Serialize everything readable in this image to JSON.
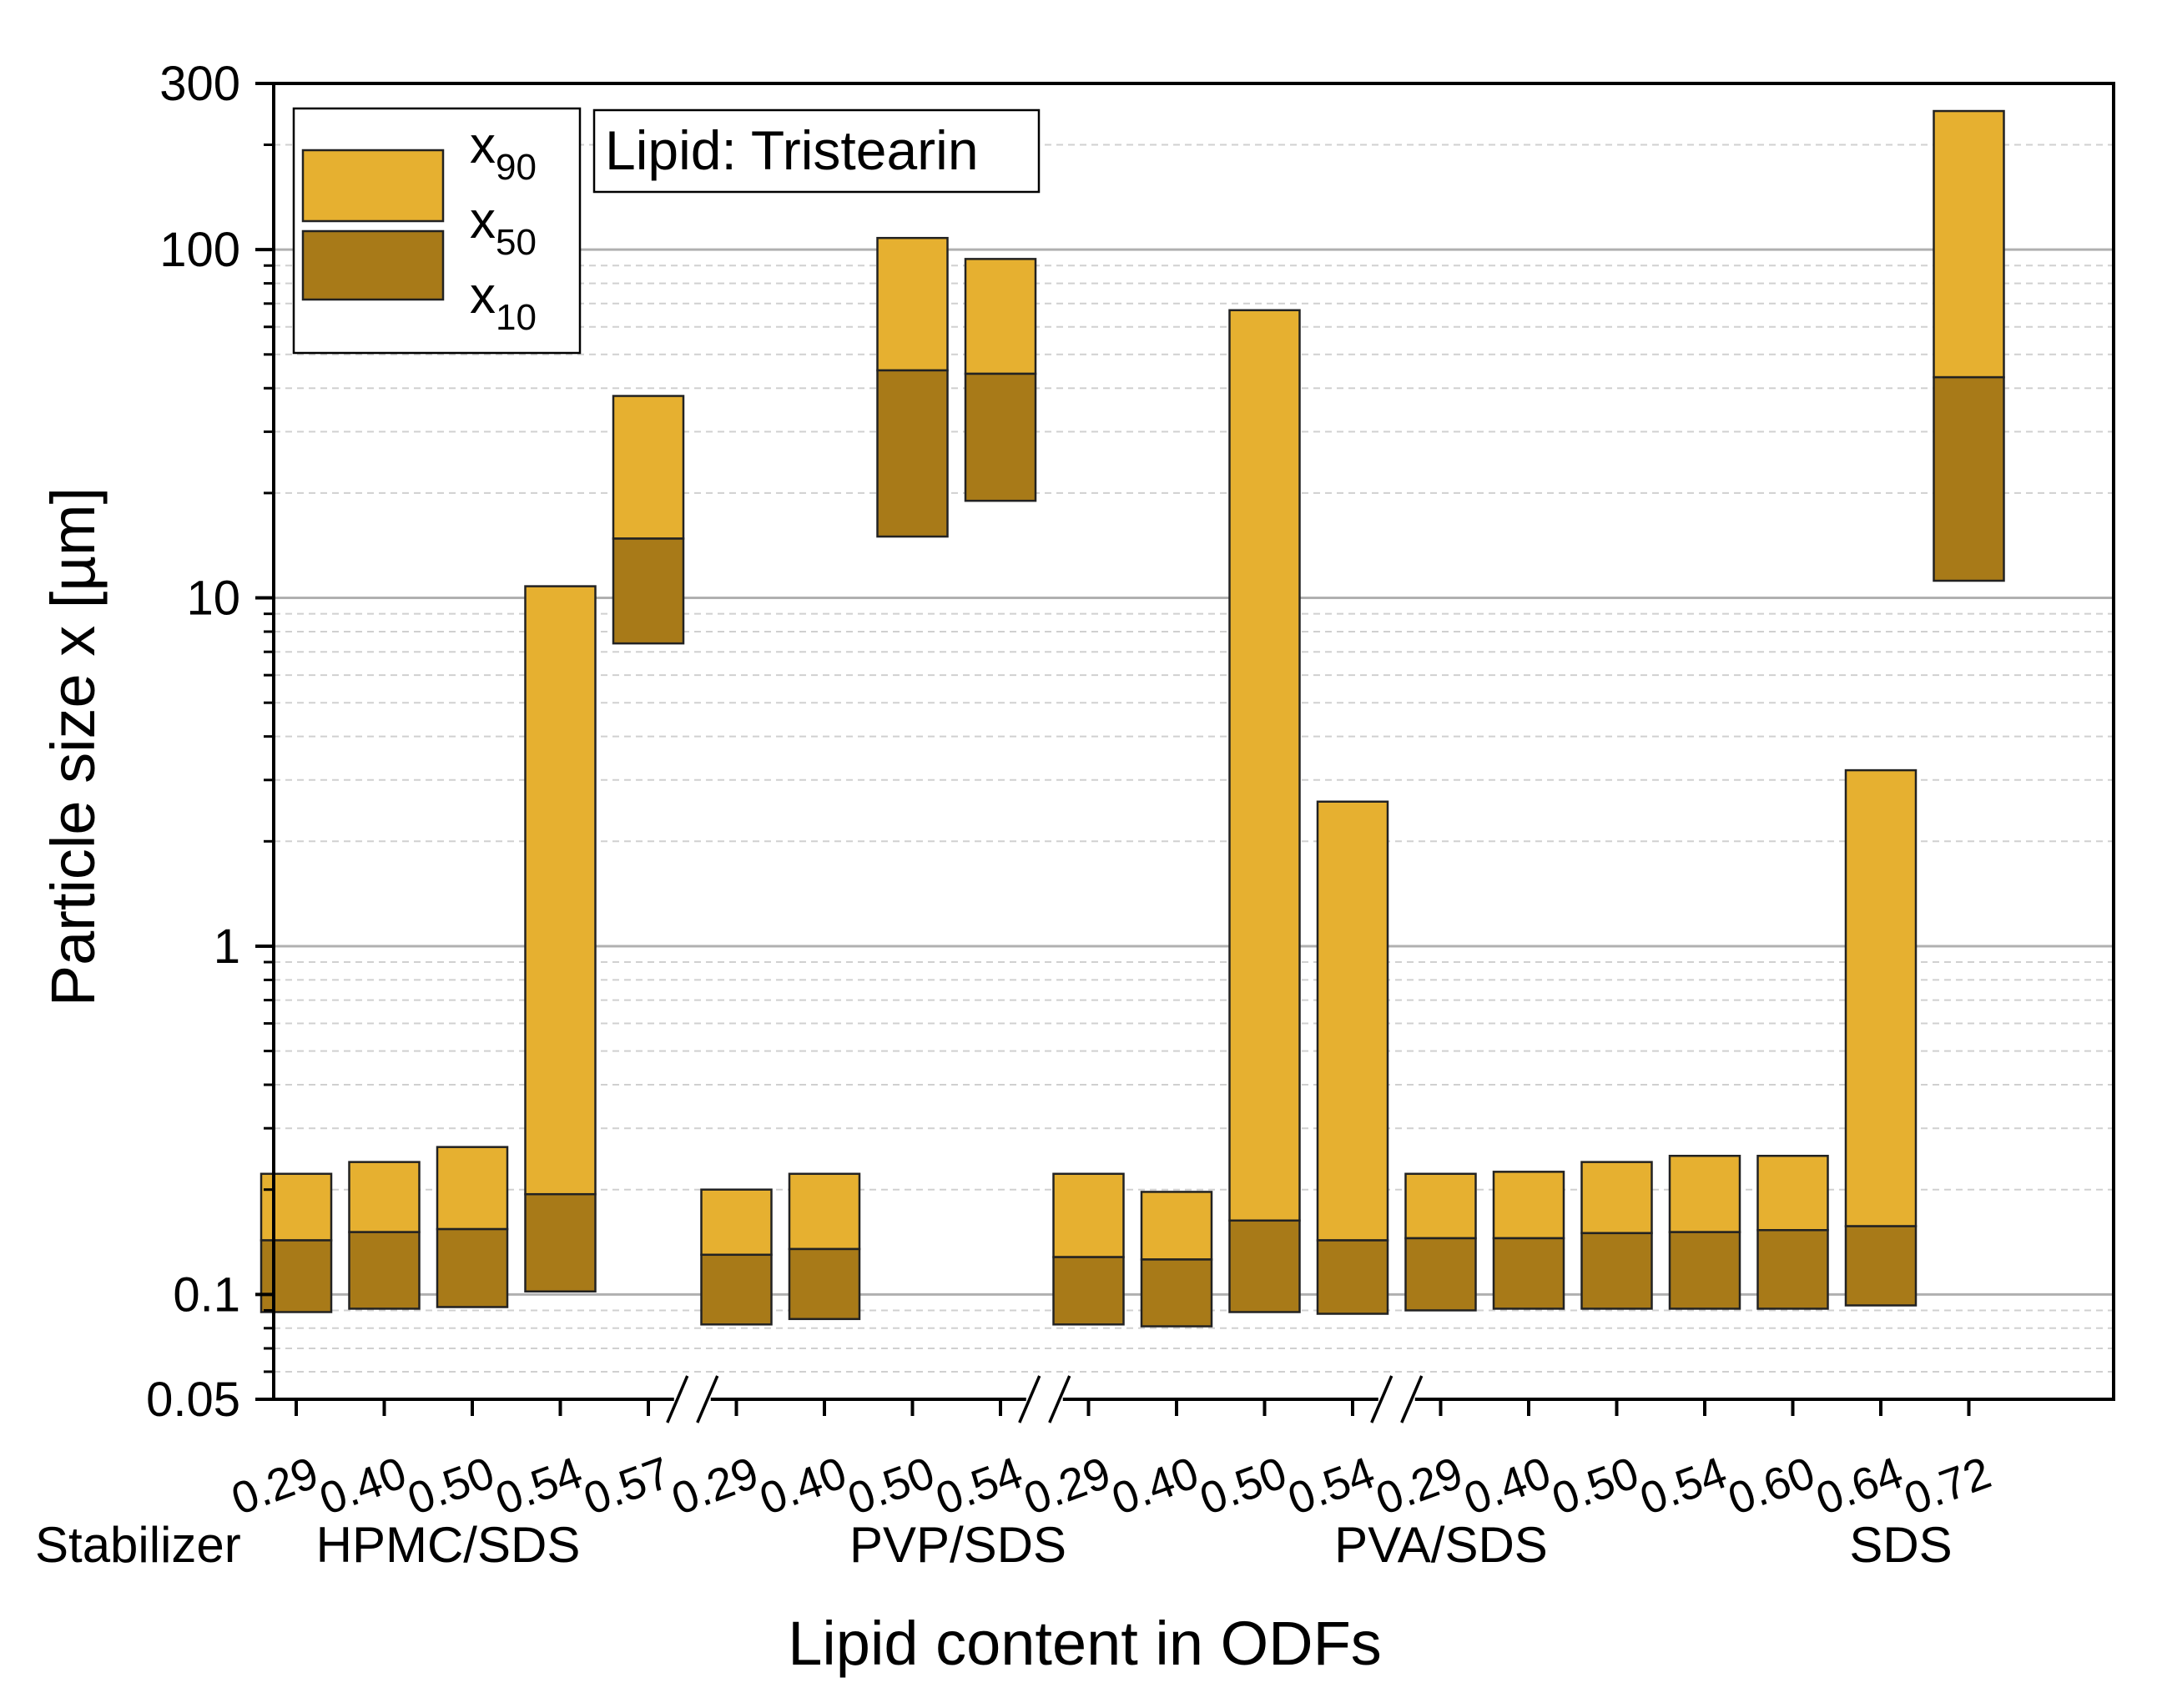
{
  "chart_data": {
    "type": "bar",
    "subtype": "floating-range-log",
    "annotation": "Lipid: Tristearin",
    "xlabel": "Lipid content in ODFs",
    "ylabel": "Particle size x [µm]",
    "yscale": "log",
    "ylim": [
      0.05,
      300
    ],
    "yticks": [
      {
        "value": 0.05,
        "label": "0.05"
      },
      {
        "value": 0.1,
        "label": "0.1"
      },
      {
        "value": 1,
        "label": "1"
      },
      {
        "value": 10,
        "label": "10"
      },
      {
        "value": 100,
        "label": "100"
      },
      {
        "value": 300,
        "label": "300"
      }
    ],
    "stabilizer_label": "Stabilizer",
    "colors": {
      "x90": "#E6B030",
      "x50": "#A87A18",
      "edge": "#222222",
      "grid_major": "#b0b0b0",
      "grid_minor": "#d0d0d0"
    },
    "legend": {
      "position": "top-left",
      "entries": [
        {
          "key": "x90",
          "base": "x",
          "sub": "90"
        },
        {
          "key": "x50",
          "base": "x",
          "sub": "50"
        },
        {
          "key": "x10",
          "base": "x",
          "sub": "10"
        }
      ]
    },
    "groups": [
      {
        "name": "HPMC/SDS",
        "bars": [
          {
            "label": "0.29",
            "x10": 0.089,
            "x50": 0.143,
            "x90": 0.222
          },
          {
            "label": "0.40",
            "x10": 0.091,
            "x50": 0.151,
            "x90": 0.24
          },
          {
            "label": "0.50",
            "x10": 0.092,
            "x50": 0.154,
            "x90": 0.265
          },
          {
            "label": "0.54",
            "x10": 0.102,
            "x50": 0.194,
            "x90": 10.8
          },
          {
            "label": "0.57",
            "x10": 7.4,
            "x50": 14.8,
            "x90": 38.0
          }
        ]
      },
      {
        "name": "PVP/SDS",
        "bars": [
          {
            "label": "0.29",
            "x10": 0.082,
            "x50": 0.13,
            "x90": 0.2
          },
          {
            "label": "0.40",
            "x10": 0.085,
            "x50": 0.135,
            "x90": 0.222
          },
          {
            "label": "0.50",
            "x10": 15.0,
            "x50": 45.0,
            "x90": 108
          },
          {
            "label": "0.54",
            "x10": 19.0,
            "x50": 44.0,
            "x90": 94
          }
        ]
      },
      {
        "name": "PVA/SDS",
        "bars": [
          {
            "label": "0.29",
            "x10": 0.082,
            "x50": 0.128,
            "x90": 0.222
          },
          {
            "label": "0.40",
            "x10": 0.081,
            "x50": 0.126,
            "x90": 0.197
          },
          {
            "label": "0.50",
            "x10": 0.089,
            "x50": 0.163,
            "x90": 67.0
          },
          {
            "label": "0.54",
            "x10": 0.088,
            "x50": 0.143,
            "x90": 2.6
          }
        ]
      },
      {
        "name": "SDS",
        "bars": [
          {
            "label": "0.29",
            "x10": 0.09,
            "x50": 0.145,
            "x90": 0.222
          },
          {
            "label": "0.40",
            "x10": 0.091,
            "x50": 0.145,
            "x90": 0.225
          },
          {
            "label": "0.50",
            "x10": 0.091,
            "x50": 0.15,
            "x90": 0.24
          },
          {
            "label": "0.54",
            "x10": 0.091,
            "x50": 0.151,
            "x90": 0.25
          },
          {
            "label": "0.60",
            "x10": 0.091,
            "x50": 0.153,
            "x90": 0.25
          },
          {
            "label": "0.64",
            "x10": 0.093,
            "x50": 0.157,
            "x90": 3.2
          },
          {
            "label": "0.72",
            "x10": 11.2,
            "x50": 43.0,
            "x90": 250
          }
        ]
      }
    ]
  }
}
